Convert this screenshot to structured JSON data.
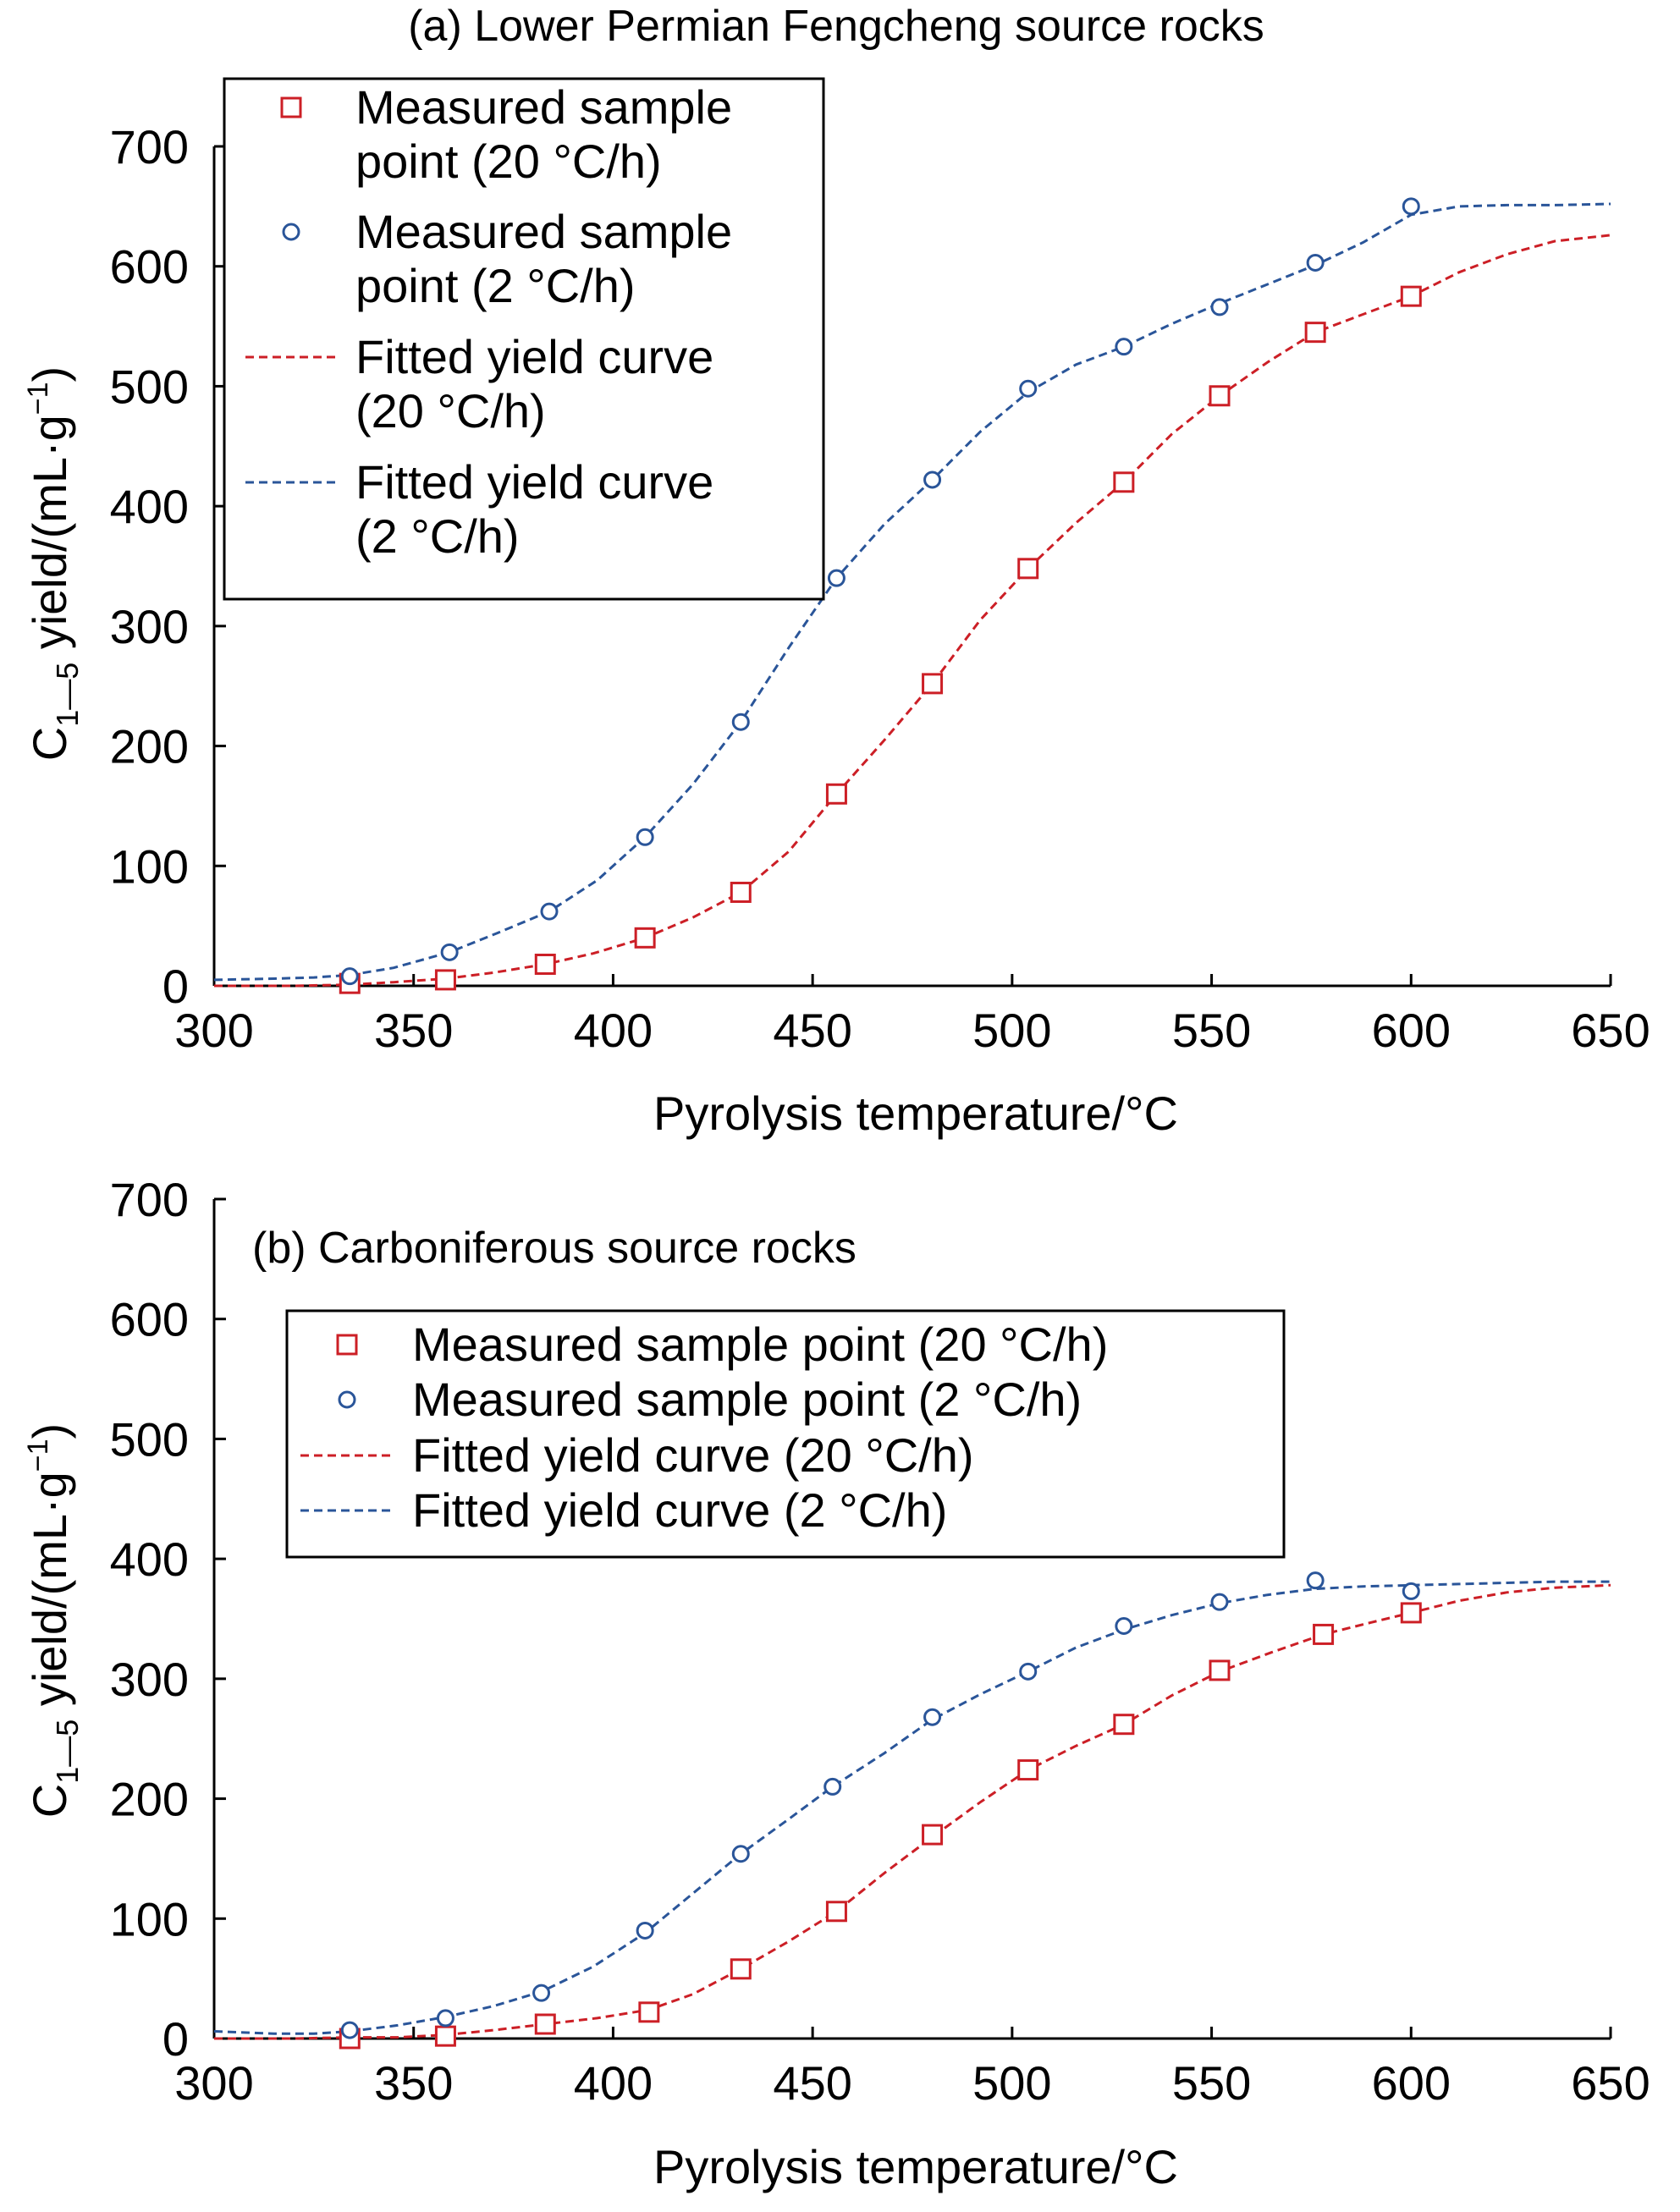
{
  "chart_data": [
    {
      "type": "line",
      "title": "(a) Lower Permian Fengcheng source rocks",
      "xlabel": "Pyrolysis temperature/°C",
      "ylabel": {
        "main": "C",
        "sub": "1—5",
        "rest": " yield/(mL·g",
        "sup": "−1",
        "close": ")"
      },
      "xlim": [
        300,
        650
      ],
      "ylim": [
        0,
        700
      ],
      "xticks": [
        "300",
        "350",
        "400",
        "450",
        "500",
        "550",
        "600",
        "650"
      ],
      "yticks": [
        "0",
        "100",
        "200",
        "300",
        "400",
        "500",
        "600",
        "700"
      ],
      "legend_placement": "top-left",
      "legend": [
        {
          "lines": [
            "Measured sample",
            "point (20 °C/h)"
          ]
        },
        {
          "lines": [
            "Measured sample",
            "point (2 °C/h)"
          ]
        },
        {
          "lines": [
            "Fitted yield curve",
            "(20 °C/h)"
          ]
        },
        {
          "lines": [
            "Fitted yield curve",
            "(2 °C/h)"
          ]
        }
      ],
      "series": [
        {
          "kind": "points",
          "marker": "square",
          "color": "#cc1f26",
          "x": [
            334,
            358,
            383,
            408,
            432,
            456,
            480,
            504,
            528,
            552,
            576,
            600
          ],
          "y": [
            2,
            5,
            18,
            40,
            78,
            160,
            252,
            348,
            420,
            492,
            545,
            575
          ]
        },
        {
          "kind": "points",
          "marker": "circle",
          "color": "#2a5599",
          "x": [
            334,
            359,
            384,
            408,
            432,
            456,
            480,
            504,
            528,
            552,
            576,
            600
          ],
          "y": [
            8,
            28,
            62,
            124,
            220,
            340,
            422,
            498,
            533,
            566,
            603,
            650
          ]
        },
        {
          "kind": "curve",
          "dash": true,
          "color": "#cc1f26",
          "x": [
            300,
            320,
            334,
            345,
            358,
            370,
            383,
            395,
            408,
            420,
            432,
            444,
            456,
            468,
            480,
            492,
            504,
            516,
            528,
            540,
            552,
            564,
            576,
            588,
            600,
            612,
            624,
            636,
            650
          ],
          "y": [
            0,
            0,
            1,
            3,
            6,
            11,
            18,
            27,
            40,
            57,
            78,
            112,
            160,
            205,
            252,
            305,
            348,
            386,
            420,
            460,
            492,
            520,
            545,
            560,
            575,
            595,
            610,
            621,
            626
          ]
        },
        {
          "kind": "curve",
          "dash": true,
          "color": "#2a5599",
          "x": [
            300,
            315,
            325,
            334,
            345,
            359,
            371,
            384,
            396,
            408,
            420,
            432,
            444,
            456,
            468,
            480,
            492,
            504,
            516,
            528,
            540,
            552,
            564,
            576,
            588,
            600,
            612,
            624,
            636,
            650
          ],
          "y": [
            5,
            6,
            7,
            9,
            15,
            28,
            44,
            62,
            88,
            124,
            168,
            220,
            282,
            340,
            385,
            422,
            462,
            495,
            518,
            533,
            552,
            569,
            585,
            601,
            620,
            643,
            650,
            651,
            651,
            652
          ]
        }
      ]
    },
    {
      "type": "line",
      "title": "(b) Carboniferous source rocks",
      "xlabel": "Pyrolysis temperature/°C",
      "ylabel": {
        "main": "C",
        "sub": "1—5",
        "rest": " yield/(mL·g",
        "sup": "−1",
        "close": ")"
      },
      "xlim": [
        300,
        650
      ],
      "ylim": [
        0,
        700
      ],
      "xticks": [
        "300",
        "350",
        "400",
        "450",
        "500",
        "550",
        "600",
        "650"
      ],
      "yticks": [
        "0",
        "100",
        "200",
        "300",
        "400",
        "500",
        "600",
        "700"
      ],
      "legend_placement": "upper-center",
      "legend": [
        {
          "lines": [
            "Measured sample point (20 °C/h)"
          ]
        },
        {
          "lines": [
            "Measured sample point (2 °C/h)"
          ]
        },
        {
          "lines": [
            "Fitted yield curve (20 °C/h)"
          ]
        },
        {
          "lines": [
            "Fitted yield curve (2 °C/h)"
          ]
        }
      ],
      "series": [
        {
          "kind": "points",
          "marker": "square",
          "color": "#cc1f26",
          "x": [
            334,
            358,
            383,
            409,
            432,
            456,
            480,
            504,
            528,
            552,
            578,
            600
          ],
          "y": [
            0,
            2,
            12,
            22,
            58,
            106,
            170,
            224,
            262,
            307,
            337,
            355
          ]
        },
        {
          "kind": "points",
          "marker": "circle",
          "color": "#2a5599",
          "x": [
            334,
            358,
            382,
            408,
            432,
            455,
            480,
            504,
            528,
            552,
            576,
            600
          ],
          "y": [
            7,
            17,
            38,
            90,
            154,
            210,
            268,
            306,
            344,
            364,
            382,
            373
          ]
        },
        {
          "kind": "curve",
          "dash": true,
          "color": "#cc1f26",
          "x": [
            300,
            320,
            334,
            346,
            358,
            370,
            383,
            396,
            409,
            420,
            432,
            444,
            456,
            468,
            480,
            492,
            504,
            516,
            528,
            540,
            552,
            565,
            578,
            590,
            600,
            612,
            624,
            636,
            650
          ],
          "y": [
            0,
            0,
            1,
            1,
            3,
            7,
            12,
            17,
            24,
            37,
            58,
            81,
            106,
            138,
            168,
            197,
            224,
            244,
            262,
            286,
            306,
            322,
            337,
            347,
            355,
            365,
            372,
            376,
            378
          ]
        },
        {
          "kind": "curve",
          "dash": true,
          "color": "#2a5599",
          "x": [
            300,
            315,
            325,
            334,
            346,
            358,
            370,
            382,
            395,
            408,
            420,
            432,
            444,
            455,
            468,
            480,
            492,
            504,
            516,
            528,
            540,
            552,
            564,
            576,
            588,
            600,
            612,
            624,
            636,
            650
          ],
          "y": [
            6,
            4,
            4,
            6,
            11,
            18,
            27,
            39,
            60,
            88,
            121,
            154,
            183,
            210,
            238,
            266,
            287,
            306,
            326,
            341,
            353,
            363,
            370,
            375,
            377,
            378,
            379,
            380,
            381,
            381
          ]
        }
      ]
    }
  ]
}
